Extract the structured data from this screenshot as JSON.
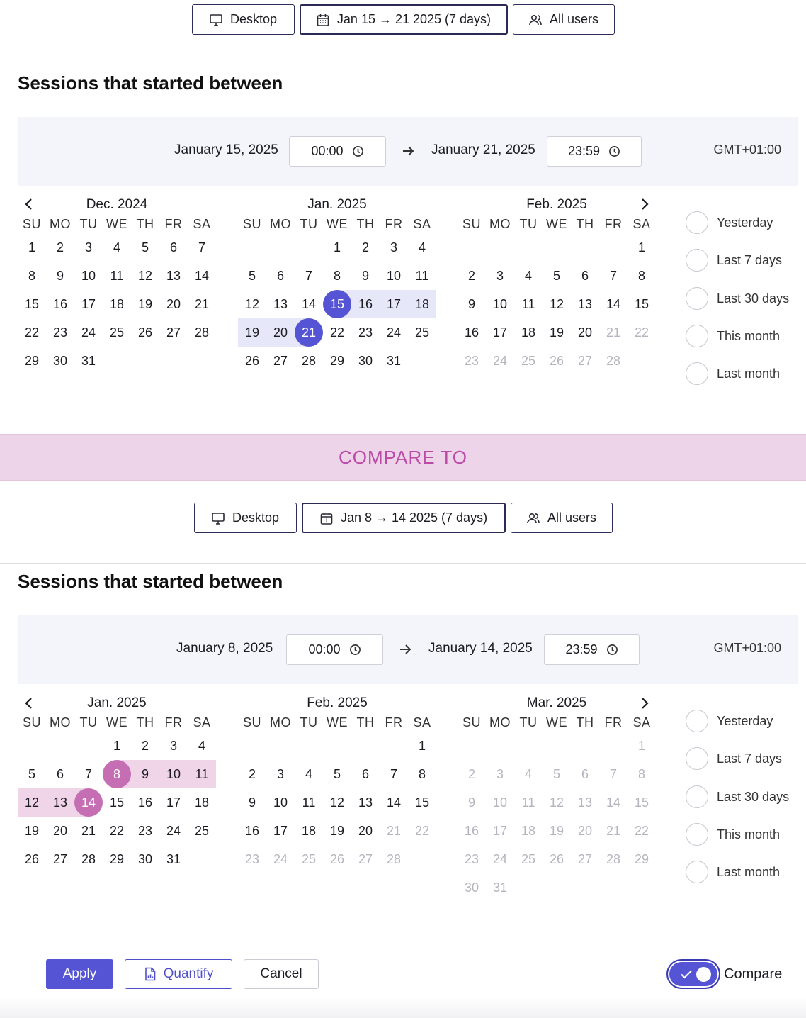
{
  "colors": {
    "accent": "#5554d4",
    "compare_accent": "#c66eb3",
    "range_bg": "#e6e7f8",
    "compare_range_bg": "#f0d5e8",
    "compare_band": "#edd4e8",
    "compare_text": "#b94aa6"
  },
  "primary": {
    "filters": {
      "device": "Desktop",
      "range": "Jan 15 → 21 2025 (7 days)",
      "users": "All users"
    },
    "title": "Sessions that started between",
    "start_date": "January 15, 2025",
    "start_time": "00:00",
    "end_date": "January 21, 2025",
    "end_time": "23:59",
    "timezone": "GMT+01:00",
    "weekdays": [
      "SU",
      "MO",
      "TU",
      "WE",
      "TH",
      "FR",
      "SA"
    ],
    "months": [
      {
        "title": "Dec. 2024",
        "offset": 0,
        "days": 31,
        "dim_from": null,
        "sel": null
      },
      {
        "title": "Jan. 2025",
        "offset": 3,
        "days": 31,
        "dim_from": null,
        "sel": {
          "start": 15,
          "end": 21,
          "variant": "a"
        }
      },
      {
        "title": "Feb. 2025",
        "offset": 6,
        "days": 28,
        "dim_from": 21,
        "sel": null
      }
    ],
    "presets": [
      "Yesterday",
      "Last 7 days",
      "Last 30 days",
      "This month",
      "Last month"
    ]
  },
  "compare_label": "COMPARE TO",
  "comparison": {
    "filters": {
      "device": "Desktop",
      "range": "Jan 8 → 14 2025 (7 days)",
      "users": "All users"
    },
    "title": "Sessions that started between",
    "start_date": "January 8, 2025",
    "start_time": "00:00",
    "end_date": "January 14, 2025",
    "end_time": "23:59",
    "timezone": "GMT+01:00",
    "weekdays": [
      "SU",
      "MO",
      "TU",
      "WE",
      "TH",
      "FR",
      "SA"
    ],
    "months": [
      {
        "title": "Jan. 2025",
        "offset": 3,
        "days": 31,
        "dim_from": null,
        "sel": {
          "start": 8,
          "end": 14,
          "variant": "b"
        }
      },
      {
        "title": "Feb. 2025",
        "offset": 6,
        "days": 28,
        "dim_from": 21,
        "sel": null
      },
      {
        "title": "Mar. 2025",
        "offset": 6,
        "days": 31,
        "dim_from": 1,
        "sel": null
      }
    ],
    "presets": [
      "Yesterday",
      "Last 7 days",
      "Last 30 days",
      "This month",
      "Last month"
    ]
  },
  "footer": {
    "apply": "Apply",
    "quantify": "Quantify",
    "cancel": "Cancel",
    "compare": "Compare",
    "compare_on": true
  }
}
